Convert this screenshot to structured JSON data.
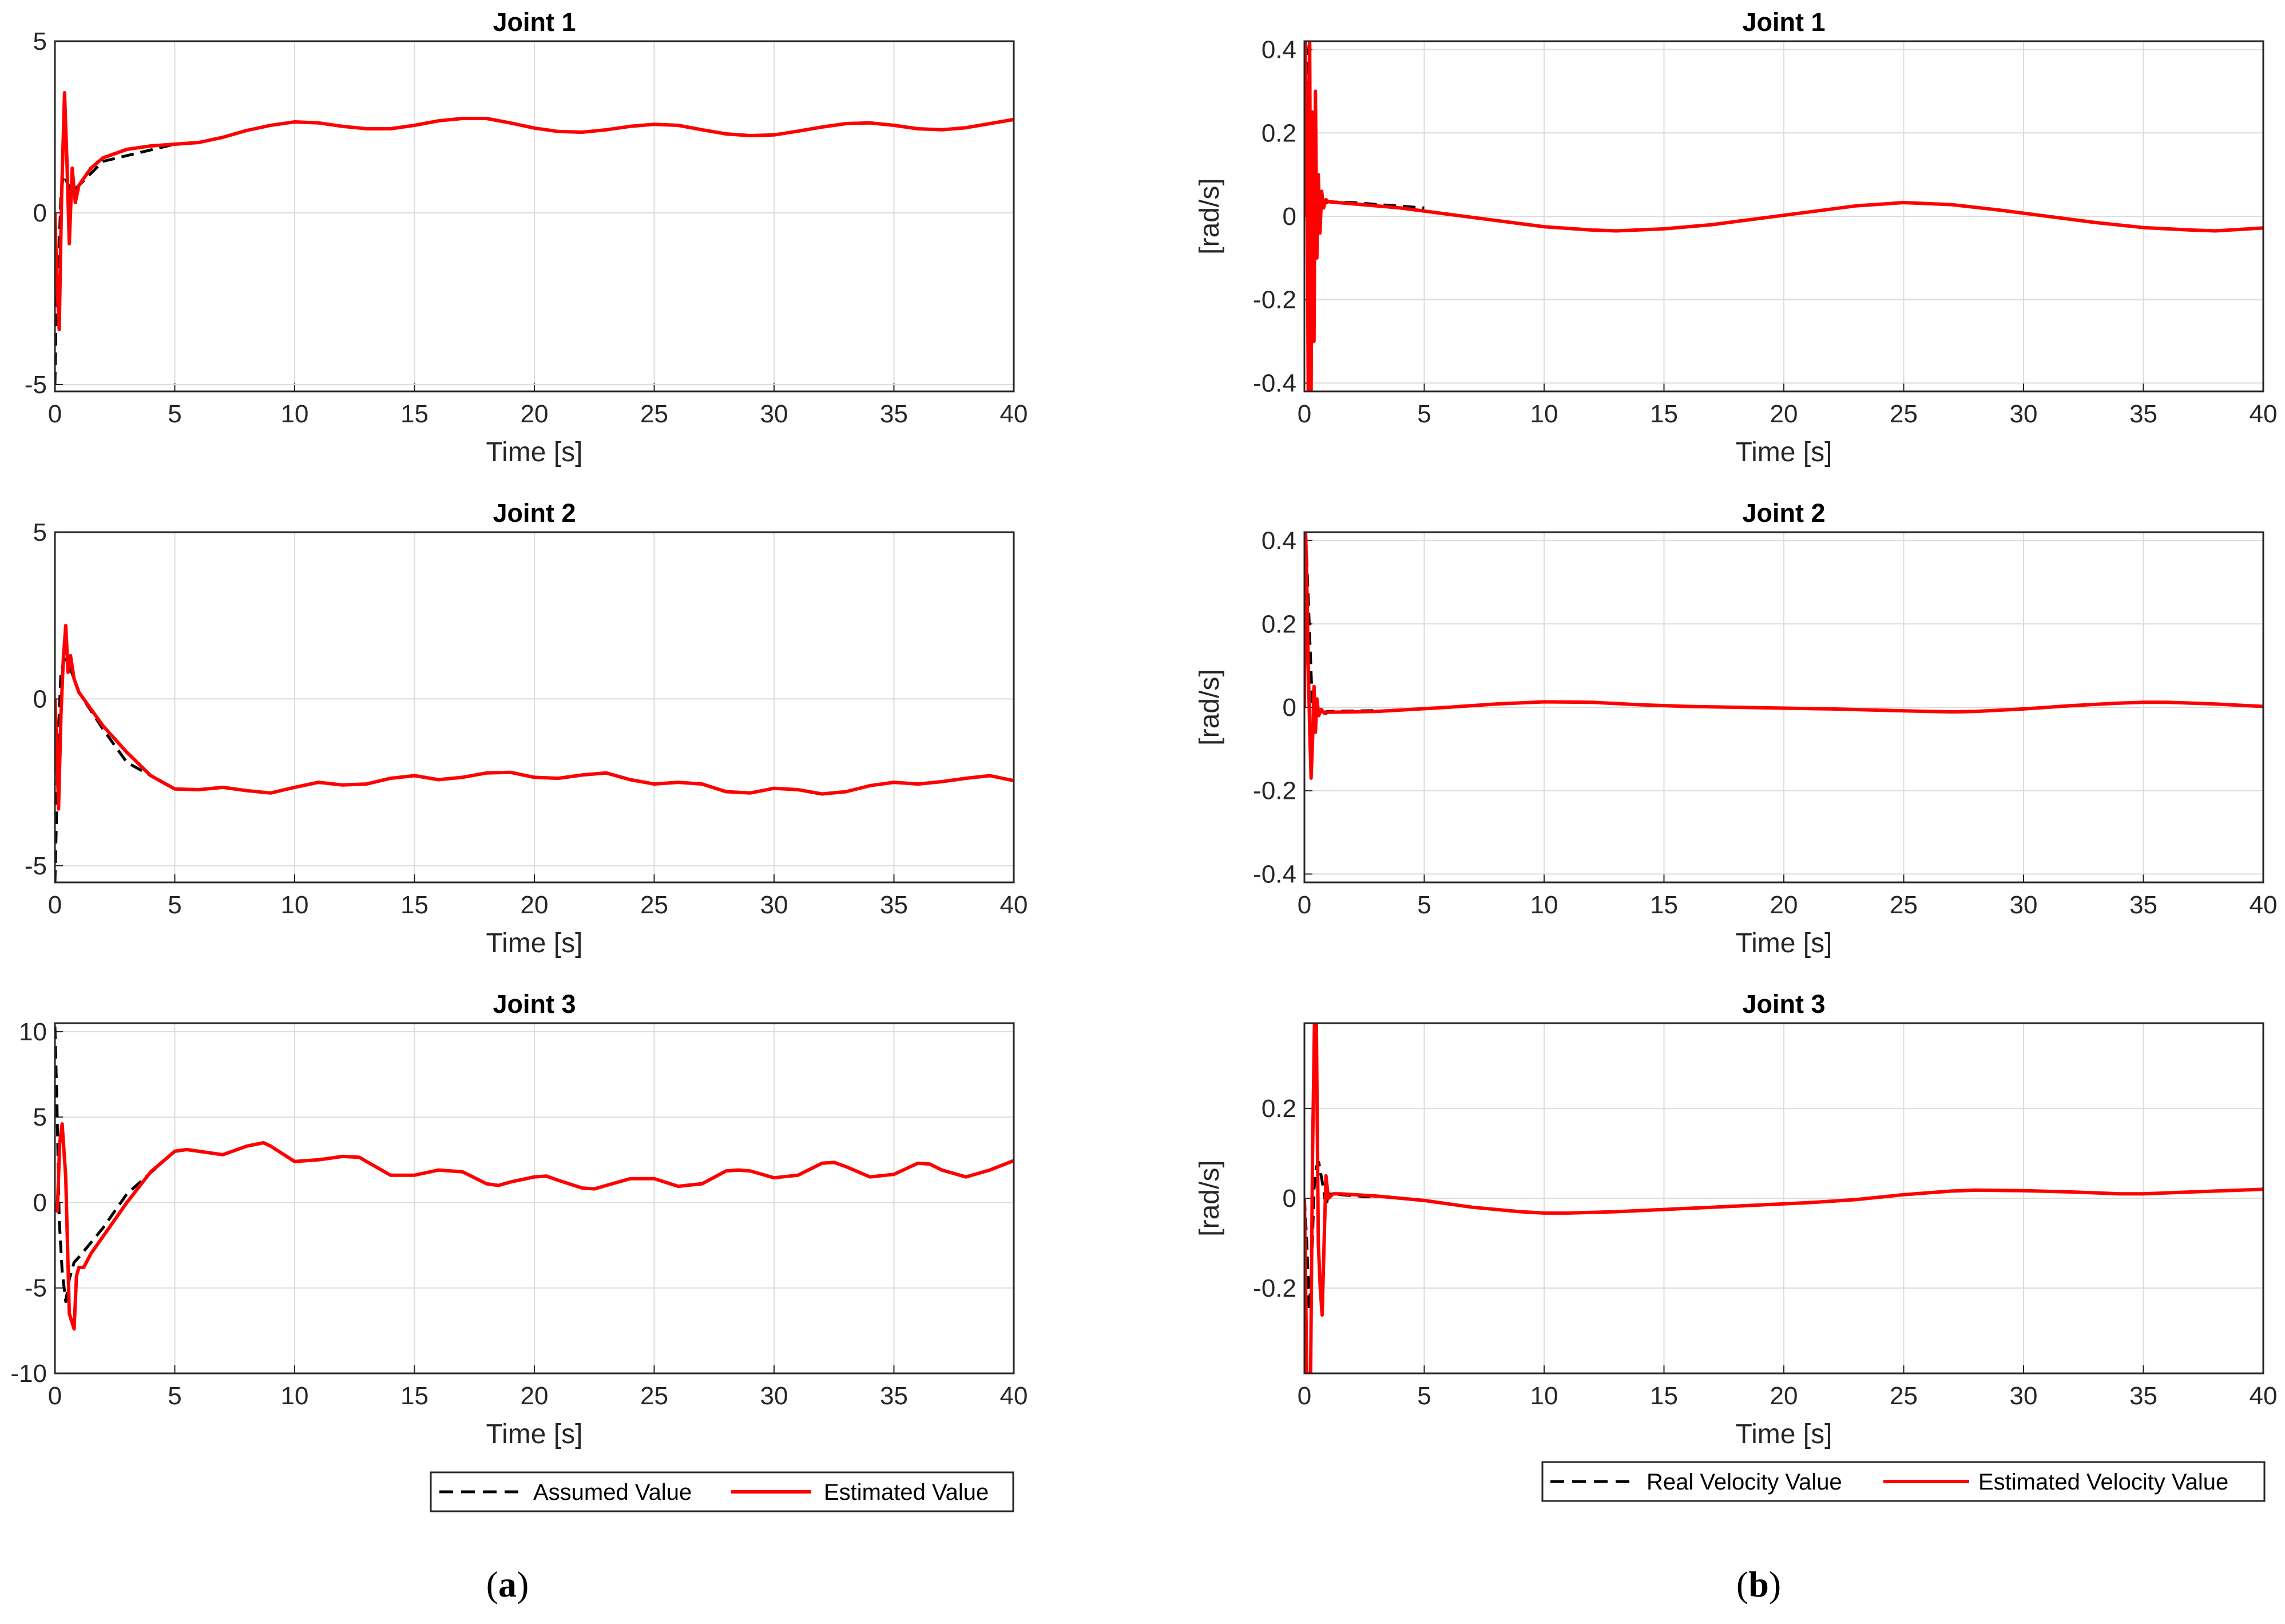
{
  "chart_data": [
    {
      "type": "line",
      "panel": "a",
      "title": "Joint 1",
      "xlabel": "Time [s]",
      "ylabel": "",
      "xlim": [
        0,
        40
      ],
      "ylim": [
        -5.2,
        5
      ],
      "xticks": [
        "0",
        "5",
        "10",
        "15",
        "20",
        "25",
        "30",
        "35",
        "40"
      ],
      "yticks": [
        {
          "v": -5,
          "t": "-5"
        },
        {
          "v": 0,
          "t": "0"
        },
        {
          "v": 5,
          "t": "5"
        }
      ],
      "series": [
        {
          "name": "Assumed Value",
          "style": "dashed",
          "color": "#000000",
          "x": [
            0,
            0.05,
            0.15,
            0.25,
            0.35,
            0.5,
            0.7,
            1,
            2,
            5
          ],
          "y": [
            -5,
            -3,
            -1.5,
            0.5,
            1.1,
            0.9,
            0.6,
            0.8,
            1.5,
            2.0
          ]
        },
        {
          "name": "Estimated Value",
          "style": "solid",
          "color": "#ff0000",
          "x": [
            0,
            0.08,
            0.18,
            0.28,
            0.4,
            0.5,
            0.6,
            0.72,
            0.85,
            1,
            1.5,
            2,
            3,
            4,
            5,
            6,
            7,
            8,
            9,
            10,
            11,
            12,
            13,
            14,
            15,
            16,
            17,
            18,
            19,
            20,
            21,
            22,
            23,
            24,
            25,
            26,
            27,
            28,
            29,
            30,
            31,
            32,
            33,
            34,
            35,
            36,
            37,
            38,
            39,
            40
          ],
          "y": [
            0,
            -2,
            -3.4,
            0.5,
            3.5,
            1.5,
            -0.9,
            1.3,
            0.3,
            0.8,
            1.3,
            1.6,
            1.85,
            1.95,
            2.0,
            2.05,
            2.2,
            2.4,
            2.55,
            2.65,
            2.62,
            2.52,
            2.45,
            2.45,
            2.55,
            2.68,
            2.75,
            2.75,
            2.62,
            2.47,
            2.37,
            2.35,
            2.42,
            2.52,
            2.58,
            2.55,
            2.42,
            2.3,
            2.25,
            2.27,
            2.38,
            2.5,
            2.6,
            2.62,
            2.55,
            2.45,
            2.42,
            2.48,
            2.6,
            2.72
          ]
        }
      ]
    },
    {
      "type": "line",
      "panel": "a",
      "title": "Joint 2",
      "xlabel": "Time [s]",
      "ylabel": "",
      "xlim": [
        0,
        40
      ],
      "ylim": [
        -5.5,
        5
      ],
      "xticks": [
        "0",
        "5",
        "10",
        "15",
        "20",
        "25",
        "30",
        "35",
        "40"
      ],
      "yticks": [
        {
          "v": -5,
          "t": "-5"
        },
        {
          "v": 0,
          "t": "0"
        },
        {
          "v": 5,
          "t": "5"
        }
      ],
      "series": [
        {
          "name": "Assumed Value",
          "style": "dashed",
          "color": "#000000",
          "x": [
            0,
            0.05,
            0.15,
            0.25,
            0.4,
            0.6,
            1,
            2,
            3,
            5
          ],
          "y": [
            -5.5,
            -4,
            -1,
            0.8,
            1.2,
            1.0,
            0.2,
            -0.9,
            -1.9,
            -2.7
          ]
        },
        {
          "name": "Estimated Value",
          "style": "solid",
          "color": "#ff0000",
          "x": [
            0,
            0.08,
            0.15,
            0.25,
            0.35,
            0.45,
            0.55,
            0.65,
            0.8,
            1,
            2,
            3,
            4,
            5,
            6,
            7,
            8,
            9,
            10,
            11,
            12,
            13,
            14,
            15,
            16,
            17,
            18,
            19,
            20,
            21,
            22,
            23,
            24,
            25,
            26,
            27,
            28,
            29,
            30,
            31,
            32,
            33,
            34,
            35,
            36,
            37,
            38,
            39,
            40
          ],
          "y": [
            0,
            -1.5,
            -3.3,
            -0.5,
            1.2,
            2.2,
            0.8,
            1.3,
            0.6,
            0.2,
            -0.8,
            -1.6,
            -2.3,
            -2.7,
            -2.72,
            -2.65,
            -2.75,
            -2.82,
            -2.65,
            -2.5,
            -2.58,
            -2.55,
            -2.38,
            -2.3,
            -2.42,
            -2.35,
            -2.22,
            -2.2,
            -2.35,
            -2.38,
            -2.28,
            -2.22,
            -2.42,
            -2.55,
            -2.5,
            -2.55,
            -2.78,
            -2.82,
            -2.68,
            -2.72,
            -2.85,
            -2.78,
            -2.6,
            -2.5,
            -2.55,
            -2.48,
            -2.38,
            -2.3,
            -2.45
          ]
        }
      ]
    },
    {
      "type": "line",
      "panel": "a",
      "title": "Joint 3",
      "xlabel": "Time [s]",
      "ylabel": "",
      "xlim": [
        0,
        40
      ],
      "ylim": [
        -10,
        10.5
      ],
      "xticks": [
        "0",
        "5",
        "10",
        "15",
        "20",
        "25",
        "30",
        "35",
        "40"
      ],
      "yticks": [
        {
          "v": -10,
          "t": "-10"
        },
        {
          "v": -5,
          "t": "-5"
        },
        {
          "v": 0,
          "t": "0"
        },
        {
          "v": 5,
          "t": "5"
        },
        {
          "v": 10,
          "t": "10"
        }
      ],
      "series": [
        {
          "name": "Assumed Value",
          "style": "dashed",
          "color": "#000000",
          "x": [
            0,
            0.08,
            0.18,
            0.3,
            0.45,
            0.6,
            0.8,
            1,
            2,
            3,
            5
          ],
          "y": [
            10.3,
            6,
            -1,
            -4,
            -5.8,
            -4.5,
            -3.5,
            -3.2,
            -1.5,
            0.5,
            3.0
          ]
        },
        {
          "name": "Estimated Value",
          "style": "solid",
          "color": "#ff0000",
          "x": [
            0,
            0.1,
            0.2,
            0.3,
            0.45,
            0.6,
            0.8,
            0.9,
            1.0,
            1.2,
            1.5,
            2,
            3,
            4,
            5,
            5.5,
            6,
            7,
            8,
            8.7,
            9,
            10,
            11,
            12,
            12.7,
            13,
            14,
            15,
            16,
            17,
            18,
            18.5,
            19,
            20,
            20.5,
            21,
            22,
            22.5,
            23,
            24,
            25,
            26,
            27,
            28,
            28.5,
            29,
            30,
            31,
            32,
            32.5,
            33,
            34,
            35,
            36,
            36.5,
            37,
            38,
            39,
            40
          ],
          "y": [
            0,
            -0.5,
            3.5,
            4.6,
            1.5,
            -6.5,
            -7.4,
            -4.3,
            -3.8,
            -3.8,
            -3.0,
            -2.0,
            0,
            1.8,
            3.0,
            3.1,
            3.0,
            2.8,
            3.3,
            3.5,
            3.3,
            2.4,
            2.5,
            2.7,
            2.65,
            2.4,
            1.6,
            1.6,
            1.9,
            1.8,
            1.1,
            1.0,
            1.2,
            1.5,
            1.55,
            1.3,
            0.85,
            0.8,
            1.0,
            1.4,
            1.4,
            0.95,
            1.1,
            1.85,
            1.9,
            1.85,
            1.45,
            1.6,
            2.3,
            2.35,
            2.1,
            1.5,
            1.65,
            2.3,
            2.25,
            1.9,
            1.5,
            1.9,
            2.45
          ]
        }
      ]
    },
    {
      "type": "line",
      "panel": "b",
      "title": "Joint 1",
      "xlabel": "Time [s]",
      "ylabel": "[rad/s]",
      "xlim": [
        0,
        40
      ],
      "ylim": [
        -0.42,
        0.42
      ],
      "xticks": [
        "0",
        "5",
        "10",
        "15",
        "20",
        "25",
        "30",
        "35",
        "40"
      ],
      "yticks": [
        {
          "v": -0.4,
          "t": "-0.4"
        },
        {
          "v": -0.2,
          "t": "-0.2"
        },
        {
          "v": 0,
          "t": "0"
        },
        {
          "v": 0.2,
          "t": "0.2"
        },
        {
          "v": 0.4,
          "t": "0.4"
        }
      ],
      "series": [
        {
          "name": "Real Velocity Value",
          "style": "dashed",
          "color": "#000000",
          "x": [
            0,
            0.05,
            0.12,
            0.2,
            0.3,
            0.4,
            0.5,
            0.6,
            0.8,
            1,
            2,
            5
          ],
          "y": [
            0.05,
            0.42,
            0.38,
            0.2,
            0.1,
            0.05,
            0.03,
            0.04,
            0.03,
            0.035,
            0.033,
            0.02
          ]
        },
        {
          "name": "Estimated Velocity Value",
          "style": "solid",
          "color": "#ff0000",
          "x": [
            0,
            0.04,
            0.1,
            0.16,
            0.22,
            0.28,
            0.34,
            0.4,
            0.46,
            0.52,
            0.58,
            0.65,
            0.72,
            0.8,
            0.9,
            1,
            2,
            4,
            6,
            8,
            10,
            12,
            13,
            15,
            17,
            19,
            21,
            23,
            25,
            27,
            29,
            31,
            33,
            35,
            37,
            38,
            40
          ],
          "y": [
            0,
            0.42,
            0.2,
            -0.42,
            0.42,
            -0.42,
            0.25,
            -0.3,
            0.3,
            -0.1,
            0.1,
            -0.04,
            0.06,
            0.02,
            0.04,
            0.035,
            0.03,
            0.02,
            0.005,
            -0.01,
            -0.025,
            -0.033,
            -0.035,
            -0.03,
            -0.02,
            -0.005,
            0.01,
            0.025,
            0.033,
            0.028,
            0.015,
            0,
            -0.015,
            -0.027,
            -0.033,
            -0.035,
            -0.028
          ]
        }
      ]
    },
    {
      "type": "line",
      "panel": "b",
      "title": "Joint 2",
      "xlabel": "Time [s]",
      "ylabel": "[rad/s]",
      "xlim": [
        0,
        40
      ],
      "ylim": [
        -0.42,
        0.42
      ],
      "xticks": [
        "0",
        "5",
        "10",
        "15",
        "20",
        "25",
        "30",
        "35",
        "40"
      ],
      "yticks": [
        {
          "v": -0.4,
          "t": "-0.4"
        },
        {
          "v": -0.2,
          "t": "-0.2"
        },
        {
          "v": 0,
          "t": "0"
        },
        {
          "v": 0.2,
          "t": "0.2"
        },
        {
          "v": 0.4,
          "t": "0.4"
        }
      ],
      "series": [
        {
          "name": "Real Velocity Value",
          "style": "dashed",
          "color": "#000000",
          "x": [
            0,
            0.05,
            0.1,
            0.2,
            0.3,
            0.4,
            0.5,
            0.6,
            0.8,
            1,
            3
          ],
          "y": [
            0.1,
            0.42,
            0.35,
            0.2,
            0.05,
            -0.05,
            -0.02,
            -0.01,
            -0.012,
            -0.01,
            -0.008
          ]
        },
        {
          "name": "Estimated Velocity Value",
          "style": "solid",
          "color": "#ff0000",
          "x": [
            0,
            0.05,
            0.1,
            0.16,
            0.22,
            0.28,
            0.34,
            0.4,
            0.46,
            0.52,
            0.6,
            0.7,
            0.85,
            1,
            3,
            6,
            8,
            10,
            12,
            14,
            16,
            18,
            20,
            22,
            24,
            26,
            27,
            28,
            30,
            32,
            34,
            35,
            36,
            38,
            40
          ],
          "y": [
            0,
            0.42,
            0.3,
            0.1,
            -0.05,
            -0.17,
            -0.08,
            0.05,
            -0.06,
            0.02,
            -0.02,
            -0.005,
            -0.015,
            -0.012,
            -0.01,
            0,
            0.008,
            0.013,
            0.012,
            0.006,
            0.002,
            0,
            -0.002,
            -0.004,
            -0.007,
            -0.01,
            -0.011,
            -0.01,
            -0.004,
            0.004,
            0.01,
            0.012,
            0.012,
            0.008,
            0.002
          ]
        }
      ]
    },
    {
      "type": "line",
      "panel": "b",
      "title": "Joint 3",
      "xlabel": "Time [s]",
      "ylabel": "[rad/s]",
      "xlim": [
        0,
        40
      ],
      "ylim": [
        -0.39,
        0.39
      ],
      "xticks": [
        "0",
        "5",
        "10",
        "15",
        "20",
        "25",
        "30",
        "35",
        "40"
      ],
      "yticks": [
        {
          "v": -0.2,
          "t": "-0.2"
        },
        {
          "v": 0,
          "t": "0"
        },
        {
          "v": 0.2,
          "t": "0.2"
        }
      ],
      "series": [
        {
          "name": "Real Velocity Value",
          "style": "dashed",
          "color": "#000000",
          "x": [
            0,
            0.1,
            0.2,
            0.3,
            0.4,
            0.5,
            0.6,
            0.7,
            0.8,
            0.9,
            1.0,
            1.5,
            3
          ],
          "y": [
            0,
            -0.1,
            -0.25,
            -0.15,
            0.02,
            0.07,
            0.08,
            0.05,
            0.02,
            -0.02,
            0.01,
            0.008,
            0.002
          ]
        },
        {
          "name": "Estimated Velocity Value",
          "style": "solid",
          "color": "#ff0000",
          "x": [
            0,
            0.1,
            0.18,
            0.26,
            0.34,
            0.42,
            0.5,
            0.58,
            0.66,
            0.74,
            0.82,
            0.9,
            1.0,
            1.2,
            1.5,
            3,
            5,
            7,
            9,
            10,
            11,
            13,
            15,
            17,
            19,
            21,
            23,
            25,
            27,
            28,
            30,
            32,
            34,
            35,
            36,
            38,
            40
          ],
          "y": [
            0,
            -0.39,
            -0.39,
            -0.39,
            0.1,
            0.39,
            0.39,
            -0.1,
            -0.2,
            -0.26,
            -0.1,
            0.05,
            0.0,
            0.01,
            0.01,
            0.005,
            -0.005,
            -0.02,
            -0.03,
            -0.033,
            -0.033,
            -0.03,
            -0.025,
            -0.02,
            -0.015,
            -0.01,
            -0.003,
            0.008,
            0.016,
            0.018,
            0.017,
            0.014,
            0.01,
            0.01,
            0.012,
            0.016,
            0.02
          ]
        }
      ]
    }
  ],
  "legends": {
    "a": [
      "Assumed Value",
      "Estimated Value"
    ],
    "b": [
      "Real Velocity Value",
      "Estimated Velocity Value"
    ]
  },
  "panel_labels": {
    "a": "a",
    "b": "b"
  }
}
